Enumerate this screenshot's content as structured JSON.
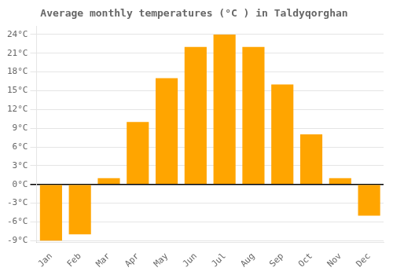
{
  "chart_data": {
    "type": "bar",
    "title": "Average monthly temperatures (°C ) in Taldyqorghan",
    "categories": [
      "Jan",
      "Feb",
      "Mar",
      "Apr",
      "May",
      "Jun",
      "Jul",
      "Aug",
      "Sep",
      "Oct",
      "Nov",
      "Dec"
    ],
    "values": [
      -9,
      -8,
      1,
      10,
      17,
      22,
      24,
      22,
      16,
      8,
      1,
      -5
    ],
    "color": "#FFA500",
    "ylim": [
      -9.3,
      25.3
    ],
    "yticks": [
      {
        "value": -9,
        "label": "-9°C"
      },
      {
        "value": -6,
        "label": "-6°C"
      },
      {
        "value": -3,
        "label": "-3°C"
      },
      {
        "value": 0,
        "label": "0°C"
      },
      {
        "value": 3,
        "label": "3°C"
      },
      {
        "value": 6,
        "label": "6°C"
      },
      {
        "value": 9,
        "label": "9°C"
      },
      {
        "value": 12,
        "label": "12°C"
      },
      {
        "value": 15,
        "label": "15°C"
      },
      {
        "value": 18,
        "label": "18°C"
      },
      {
        "value": 21,
        "label": "21°C"
      },
      {
        "value": 24,
        "label": "24°C"
      }
    ],
    "grid": true
  }
}
